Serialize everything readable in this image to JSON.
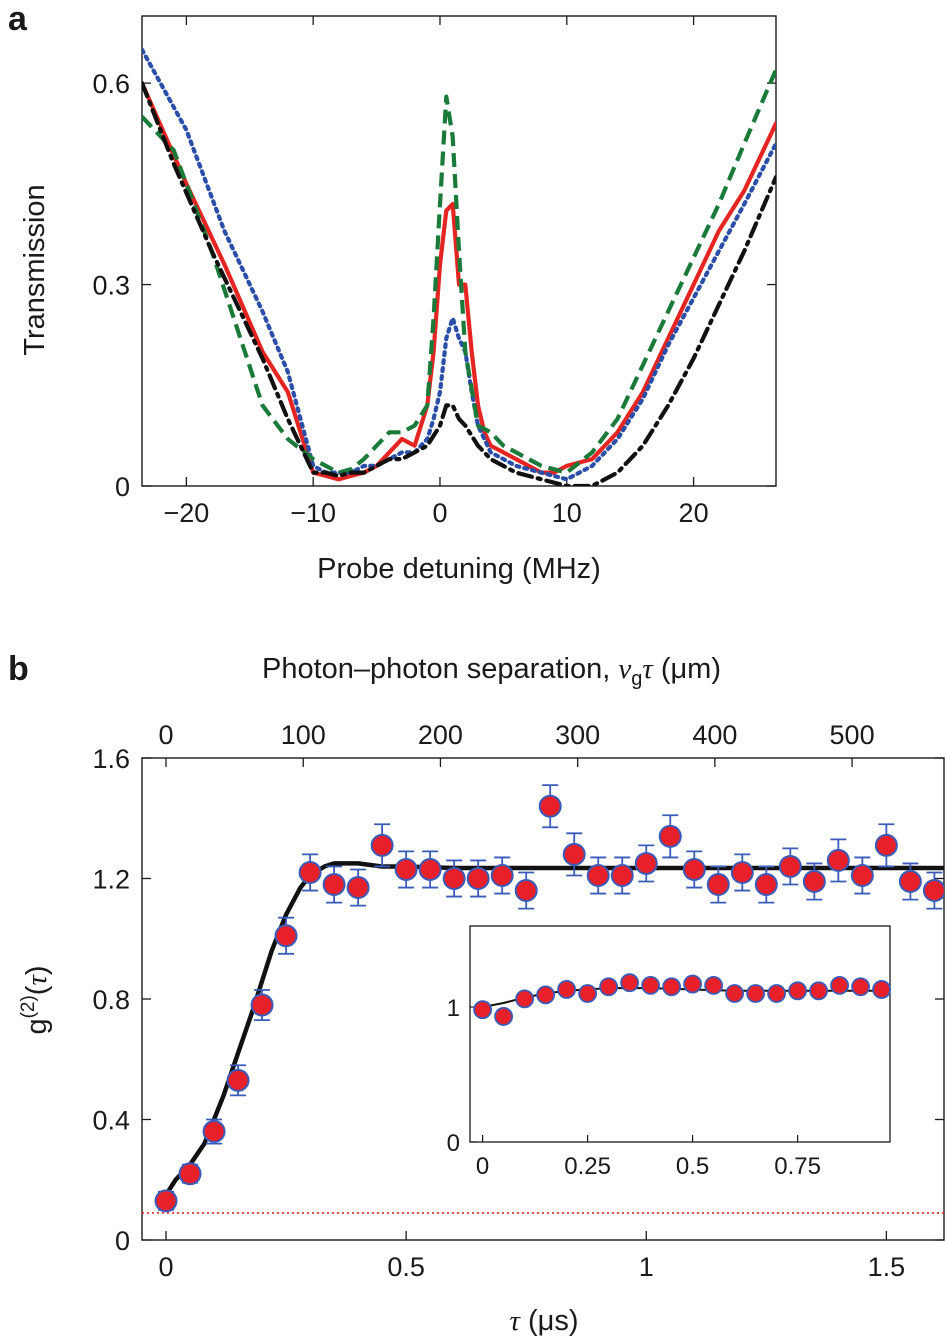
{
  "chart_data": [
    {
      "panel": "a",
      "type": "line",
      "xlabel": "Probe detuning (MHz)",
      "ylabel": "Transmission",
      "xlim": [
        -23.5,
        26.5
      ],
      "ylim": [
        0,
        0.7
      ],
      "xticks": [
        -20,
        -10,
        0,
        10,
        20
      ],
      "xtick_labels": [
        "−20",
        "−10",
        "0",
        "10",
        "20"
      ],
      "yticks": [
        0,
        0.3,
        0.6
      ],
      "ytick_labels": [
        "0",
        "0.3",
        "0.6"
      ],
      "grid": false,
      "series": [
        {
          "color": "#e52521",
          "style": "solid",
          "x": [
            -23.5,
            -20,
            -17,
            -14,
            -12,
            -10,
            -9,
            -8,
            -7,
            -6,
            -5,
            -4,
            -3,
            -2,
            -1,
            -0.5,
            0,
            0.5,
            1,
            1.5,
            2,
            2.5,
            3,
            3.5,
            4,
            5,
            6,
            7,
            8,
            9,
            10,
            12,
            14,
            16,
            18,
            20,
            22,
            24,
            26.5
          ],
          "y": [
            0.6,
            0.45,
            0.33,
            0.2,
            0.14,
            0.02,
            0.015,
            0.01,
            0.015,
            0.02,
            0.03,
            0.05,
            0.07,
            0.06,
            0.12,
            0.2,
            0.33,
            0.41,
            0.42,
            0.3,
            0.3,
            0.2,
            0.12,
            0.08,
            0.06,
            0.05,
            0.04,
            0.03,
            0.02,
            0.02,
            0.03,
            0.04,
            0.08,
            0.14,
            0.22,
            0.3,
            0.38,
            0.44,
            0.54
          ]
        },
        {
          "color": "#2b4ea8",
          "style": "dotted",
          "x": [
            -23.5,
            -20,
            -17,
            -14,
            -12,
            -10,
            -9,
            -8,
            -7,
            -6,
            -5,
            -4,
            -3,
            -2,
            -1,
            -0.5,
            0,
            0.5,
            1,
            1.5,
            2,
            2.5,
            3,
            4,
            5,
            6,
            8,
            10,
            12,
            14,
            16,
            18,
            20,
            22,
            24,
            26.5
          ],
          "y": [
            0.65,
            0.53,
            0.38,
            0.26,
            0.17,
            0.03,
            0.02,
            0.02,
            0.02,
            0.03,
            0.03,
            0.04,
            0.05,
            0.05,
            0.07,
            0.1,
            0.14,
            0.22,
            0.25,
            0.22,
            0.2,
            0.14,
            0.09,
            0.05,
            0.04,
            0.03,
            0.02,
            0.01,
            0.03,
            0.07,
            0.13,
            0.21,
            0.28,
            0.35,
            0.42,
            0.51
          ]
        },
        {
          "color": "#1a7a3a",
          "style": "dashed",
          "x": [
            -23.5,
            -21,
            -18,
            -14,
            -12,
            -10,
            -9,
            -8,
            -7,
            -6,
            -5,
            -4,
            -3,
            -2,
            -1,
            -0.5,
            0,
            0.5,
            1,
            1.5,
            2,
            3,
            4,
            5,
            6,
            7,
            8,
            10,
            12,
            14,
            16,
            18,
            20,
            22,
            24,
            26.5
          ],
          "y": [
            0.55,
            0.5,
            0.35,
            0.12,
            0.07,
            0.04,
            0.03,
            0.02,
            0.025,
            0.04,
            0.06,
            0.08,
            0.08,
            0.09,
            0.12,
            0.25,
            0.42,
            0.58,
            0.52,
            0.35,
            0.2,
            0.09,
            0.08,
            0.06,
            0.05,
            0.04,
            0.03,
            0.02,
            0.05,
            0.1,
            0.18,
            0.26,
            0.34,
            0.42,
            0.51,
            0.62
          ]
        },
        {
          "color": "#111111",
          "style": "dashdot",
          "x": [
            -23.5,
            -21,
            -18,
            -14,
            -12,
            -10,
            -9,
            -8,
            -7,
            -6,
            -5,
            -4,
            -3,
            -2,
            -1,
            0,
            0.5,
            1,
            1.5,
            2,
            3,
            4,
            5,
            6,
            8,
            10,
            12,
            14,
            16,
            18,
            20,
            22,
            24,
            26.5
          ],
          "y": [
            0.6,
            0.48,
            0.35,
            0.19,
            0.1,
            0.02,
            0.02,
            0.015,
            0.02,
            0.02,
            0.03,
            0.04,
            0.04,
            0.05,
            0.06,
            0.09,
            0.12,
            0.12,
            0.1,
            0.09,
            0.06,
            0.04,
            0.03,
            0.02,
            0.01,
            0.0,
            0.0,
            0.02,
            0.06,
            0.12,
            0.19,
            0.27,
            0.35,
            0.46
          ]
        }
      ]
    },
    {
      "panel": "b",
      "type": "scatter",
      "xlabel": "(μs)",
      "x_symbol": "τ",
      "ylabel": "g(2)(τ)",
      "top_xlabel": "Photon–photon separation,",
      "top_xlabel_symbol": "νgτ",
      "top_xlabel_unit": "(μm)",
      "xlim": [
        -0.05,
        1.62
      ],
      "ylim": [
        0,
        1.6
      ],
      "xticks": [
        0,
        0.5,
        1,
        1.5
      ],
      "xtick_labels": [
        "0",
        "0.5",
        "1",
        "1.5"
      ],
      "yticks": [
        0,
        0.4,
        0.8,
        1.2,
        1.6
      ],
      "ytick_labels": [
        "0",
        "0.4",
        "0.8",
        "1.2",
        "1.6"
      ],
      "top_xticks": [
        0,
        100,
        200,
        300,
        400,
        500
      ],
      "top_xtick_labels": [
        "0",
        "100",
        "200",
        "300",
        "400",
        "500"
      ],
      "top_units_per_us": 350,
      "reference_level": 0.09,
      "grid": false,
      "data": {
        "x": [
          0,
          0.05,
          0.1,
          0.15,
          0.2,
          0.25,
          0.3,
          0.35,
          0.4,
          0.45,
          0.5,
          0.55,
          0.6,
          0.65,
          0.7,
          0.75,
          0.8,
          0.85,
          0.9,
          0.95,
          1.0,
          1.05,
          1.1,
          1.15,
          1.2,
          1.25,
          1.3,
          1.35,
          1.4,
          1.45,
          1.5,
          1.55,
          1.6
        ],
        "y": [
          0.13,
          0.22,
          0.36,
          0.53,
          0.78,
          1.01,
          1.22,
          1.18,
          1.17,
          1.31,
          1.23,
          1.23,
          1.2,
          1.2,
          1.21,
          1.16,
          1.44,
          1.28,
          1.21,
          1.21,
          1.25,
          1.34,
          1.23,
          1.18,
          1.22,
          1.18,
          1.24,
          1.19,
          1.26,
          1.21,
          1.31,
          1.19,
          1.16
        ],
        "err": [
          0.03,
          0.03,
          0.04,
          0.05,
          0.05,
          0.06,
          0.06,
          0.06,
          0.06,
          0.07,
          0.06,
          0.06,
          0.06,
          0.06,
          0.06,
          0.06,
          0.07,
          0.07,
          0.06,
          0.06,
          0.06,
          0.07,
          0.06,
          0.06,
          0.06,
          0.06,
          0.06,
          0.06,
          0.07,
          0.06,
          0.07,
          0.06,
          0.06
        ]
      },
      "fit": {
        "x": [
          0,
          0.02,
          0.05,
          0.08,
          0.1,
          0.12,
          0.15,
          0.18,
          0.2,
          0.22,
          0.25,
          0.28,
          0.3,
          0.33,
          0.35,
          0.4,
          0.45,
          0.5,
          0.6,
          0.8,
          1.0,
          1.2,
          1.4,
          1.62
        ],
        "y": [
          0.15,
          0.2,
          0.25,
          0.32,
          0.4,
          0.48,
          0.62,
          0.76,
          0.86,
          0.96,
          1.08,
          1.17,
          1.21,
          1.24,
          1.25,
          1.25,
          1.24,
          1.24,
          1.235,
          1.235,
          1.235,
          1.235,
          1.235,
          1.235
        ]
      },
      "inset": {
        "xlim": [
          -0.03,
          0.97
        ],
        "ylim": [
          0,
          1.6
        ],
        "xticks": [
          0,
          0.25,
          0.5,
          0.75
        ],
        "xtick_labels": [
          "0",
          "0.25",
          "0.5",
          "0.75"
        ],
        "yticks": [
          0,
          1
        ],
        "ytick_labels": [
          "0",
          "1"
        ],
        "data": {
          "x": [
            0,
            0.05,
            0.1,
            0.15,
            0.2,
            0.25,
            0.3,
            0.35,
            0.4,
            0.45,
            0.5,
            0.55,
            0.6,
            0.65,
            0.7,
            0.75,
            0.8,
            0.85,
            0.9,
            0.95
          ],
          "y": [
            0.98,
            0.93,
            1.06,
            1.09,
            1.13,
            1.1,
            1.15,
            1.18,
            1.16,
            1.15,
            1.17,
            1.16,
            1.1,
            1.1,
            1.1,
            1.12,
            1.12,
            1.16,
            1.15,
            1.13
          ]
        },
        "fit": {
          "x": [
            0,
            0.05,
            0.1,
            0.15,
            0.2,
            0.3,
            0.4,
            0.5,
            0.6,
            0.7,
            0.8,
            0.95
          ],
          "y": [
            1.0,
            1.03,
            1.07,
            1.1,
            1.12,
            1.14,
            1.14,
            1.13,
            1.12,
            1.12,
            1.12,
            1.12
          ]
        }
      }
    }
  ],
  "labels": {
    "panel_a": "a",
    "panel_b": "b"
  },
  "colors": {
    "red": "#e52521",
    "blue": "#2b4ea8",
    "green": "#1a7a3a",
    "black": "#111111",
    "marker_fill": "#e8202a",
    "marker_edge": "#3a5bb8",
    "errorbar": "#3a5bb8",
    "reference": "#e52521"
  }
}
